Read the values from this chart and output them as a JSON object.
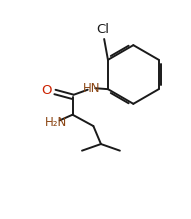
{
  "bg_color": "#ffffff",
  "bond_lw": 1.4,
  "font_size": 8.5,
  "o_color": "#cc2200",
  "n_color": "#8B4513",
  "black": "#1a1a1a",
  "fig_width": 1.91,
  "fig_height": 2.19,
  "dpi": 100,
  "xlim": [
    0,
    10
  ],
  "ylim": [
    0,
    11.5
  ]
}
